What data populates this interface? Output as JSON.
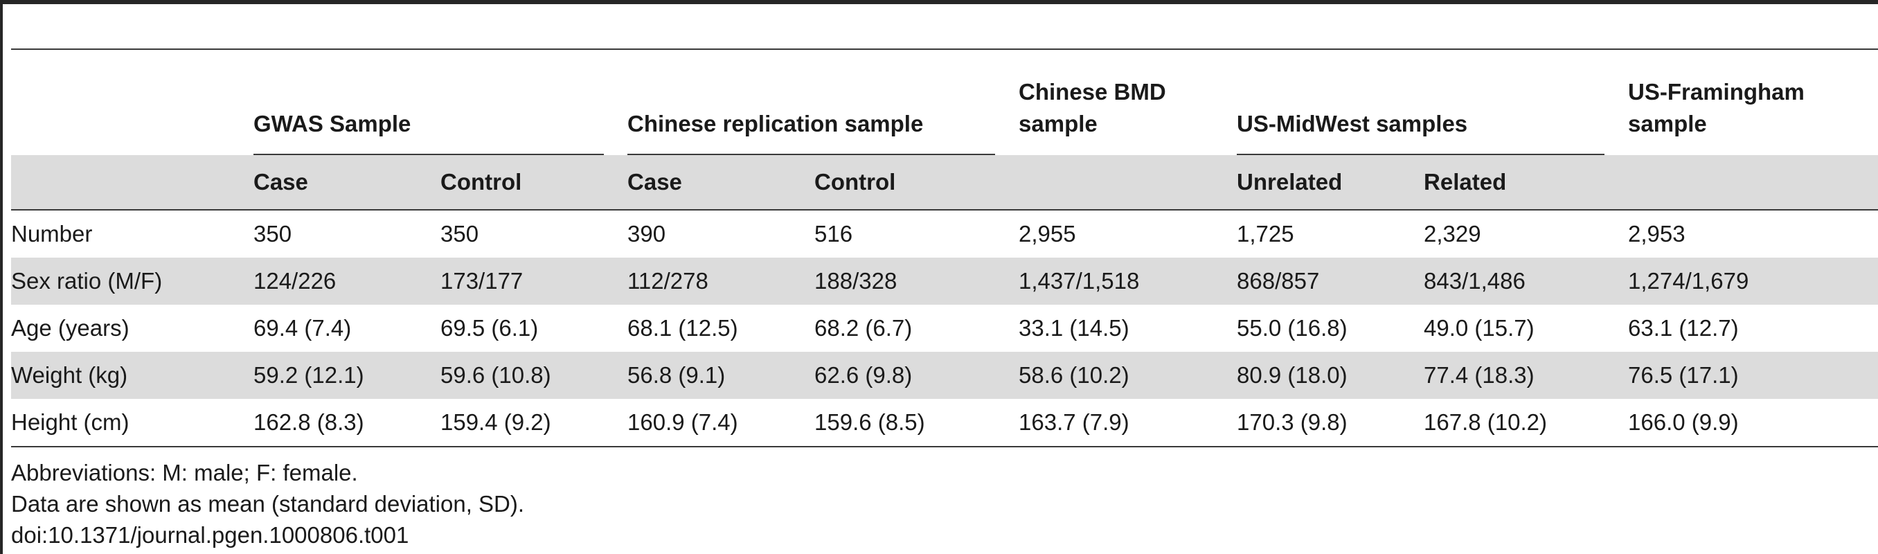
{
  "table": {
    "groups": [
      {
        "label": "",
        "span": 1
      },
      {
        "label": "GWAS Sample",
        "span": 2
      },
      {
        "label": "Chinese replication sample",
        "span": 2
      },
      {
        "label": "Chinese BMD sample",
        "span": 1
      },
      {
        "label": "US-MidWest samples",
        "span": 2
      },
      {
        "label": "US-Framingham sample",
        "span": 1
      }
    ],
    "subheaders": [
      "",
      "Case",
      "Control",
      "Case",
      "Control",
      "",
      "Unrelated",
      "Related",
      ""
    ],
    "rows": [
      [
        "Number",
        "350",
        "350",
        "390",
        "516",
        "2,955",
        "1,725",
        "2,329",
        "2,953"
      ],
      [
        "Sex ratio (M/F)",
        "124/226",
        "173/177",
        "112/278",
        "188/328",
        "1,437/1,518",
        "868/857",
        "843/1,486",
        "1,274/1,679"
      ],
      [
        "Age (years)",
        "69.4 (7.4)",
        "69.5 (6.1)",
        "68.1 (12.5)",
        "68.2 (6.7)",
        "33.1 (14.5)",
        "55.0 (16.8)",
        "49.0 (15.7)",
        "63.1 (12.7)"
      ],
      [
        "Weight (kg)",
        "59.2 (12.1)",
        "59.6 (10.8)",
        "56.8 (9.1)",
        "62.6 (9.8)",
        "58.6 (10.2)",
        "80.9 (18.0)",
        "77.4 (18.3)",
        "76.5 (17.1)"
      ],
      [
        "Height (cm)",
        "162.8 (8.3)",
        "159.4 (9.2)",
        "160.9 (7.4)",
        "159.6 (8.5)",
        "163.7 (7.9)",
        "170.3 (9.8)",
        "167.8 (10.2)",
        "166.0 (9.9)"
      ]
    ]
  },
  "footnotes": {
    "abbreviations": "Abbreviations: M: male; F: female.",
    "data_note": "Data are shown as mean (standard deviation, SD).",
    "doi": "doi:10.1371/journal.pgen.1000806.t001"
  },
  "colors": {
    "rule": "#3a3a3a",
    "shade": "#dcdcdc"
  }
}
